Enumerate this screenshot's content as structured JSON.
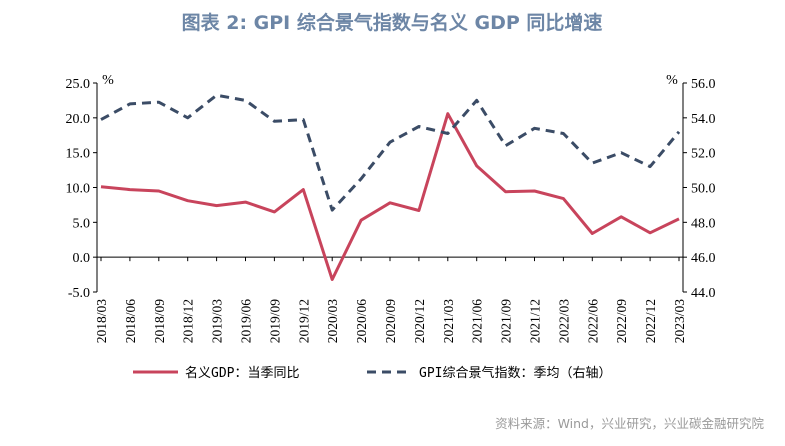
{
  "chart_data": {
    "type": "line",
    "title": "图表 2:  GPI 综合景气指数与名义 GDP 同比增速",
    "categories": [
      "2018/03",
      "2018/06",
      "2018/09",
      "2018/12",
      "2019/03",
      "2019/06",
      "2019/09",
      "2019/12",
      "2020/03",
      "2020/06",
      "2020/09",
      "2020/12",
      "2021/03",
      "2021/06",
      "2021/09",
      "2021/12",
      "2022/03",
      "2022/06",
      "2022/09",
      "2022/12",
      "2023/03"
    ],
    "left_axis": {
      "unit": "%",
      "ylim": [
        -5,
        25
      ],
      "ticks": [
        "25.0",
        "20.0",
        "15.0",
        "10.0",
        "5.0",
        "0.0",
        "-5.0"
      ]
    },
    "right_axis": {
      "unit": "%",
      "ylim": [
        44,
        56
      ],
      "ticks": [
        "56.0",
        "54.0",
        "52.0",
        "50.0",
        "48.0",
        "46.0",
        "44.0"
      ]
    },
    "series": [
      {
        "name": "名义GDP：当季同比",
        "axis": "left",
        "color": "#c8445c",
        "style": "solid",
        "values": [
          10.1,
          9.7,
          9.5,
          8.1,
          7.4,
          7.9,
          6.5,
          9.7,
          -3.2,
          5.3,
          7.8,
          6.7,
          20.6,
          13.1,
          9.4,
          9.5,
          8.4,
          3.4,
          5.8,
          3.5,
          5.5
        ]
      },
      {
        "name": "GPI综合景气指数：季均（右轴）",
        "axis": "right",
        "color": "#3b4c66",
        "style": "dashed",
        "values": [
          53.9,
          54.8,
          54.9,
          54.0,
          55.3,
          55.0,
          53.8,
          53.9,
          48.7,
          50.5,
          52.6,
          53.5,
          53.1,
          55.0,
          52.4,
          53.4,
          53.1,
          51.4,
          52.0,
          51.2,
          53.2
        ]
      }
    ],
    "grid": false,
    "legend_position": "bottom"
  },
  "source": "资料来源：Wind，兴业研究，兴业碳金融研究院"
}
